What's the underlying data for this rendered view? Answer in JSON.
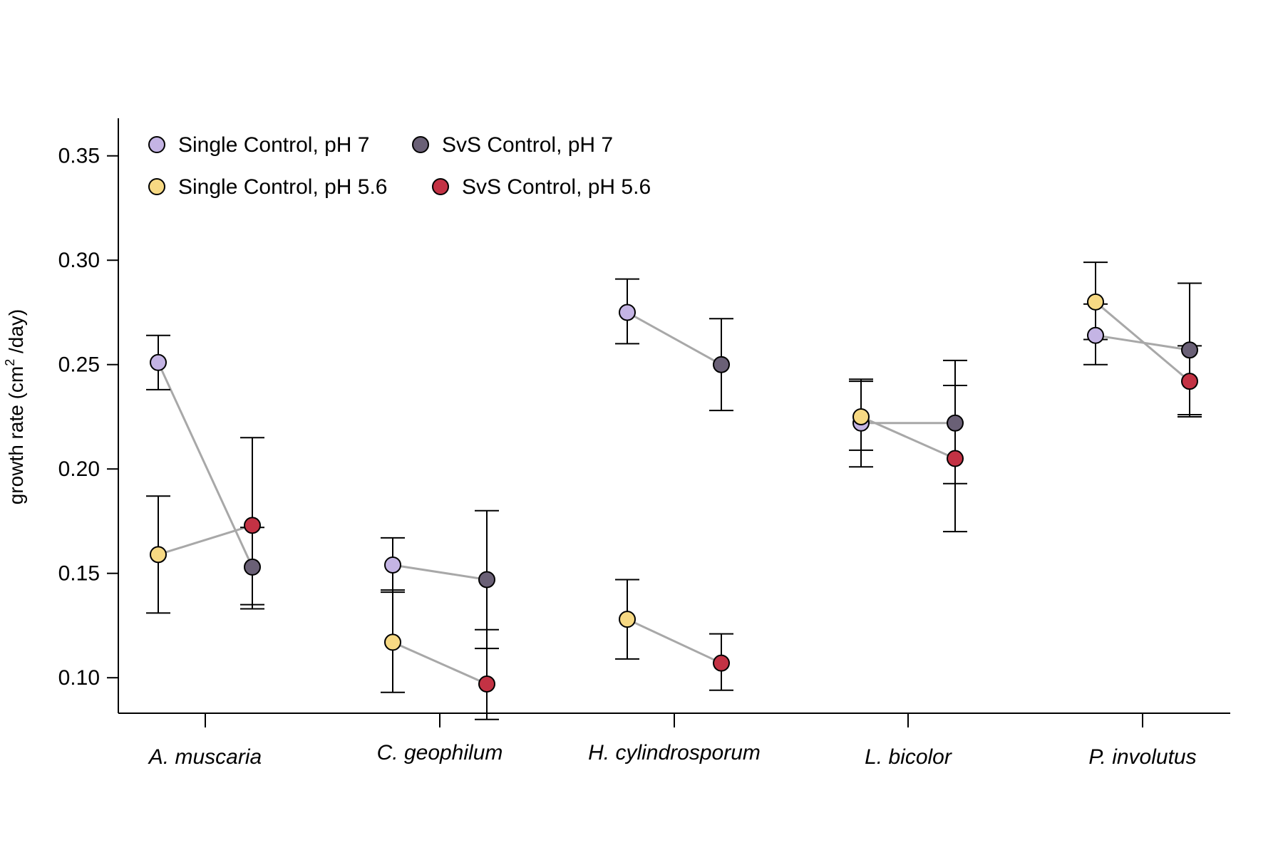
{
  "chart_data": {
    "type": "scatter",
    "title": "",
    "xlabel": "",
    "ylabel": "growth rate (cm² /day)",
    "ylabel_parts": {
      "pre": "growth rate (cm",
      "sup": "2",
      "post": " /day)"
    },
    "ylim": [
      0.083,
      0.368
    ],
    "yticks": [
      "0.10",
      "0.15",
      "0.20",
      "0.25",
      "0.30",
      "0.35"
    ],
    "categories": [
      "A. muscaria",
      "C. geophilum",
      "H. cylindrosporum",
      "L. bicolor",
      "P. involutus"
    ],
    "grid": false,
    "legend_position": "top-left",
    "series": [
      {
        "name": "Single Control, pH 7",
        "position": "single",
        "color": "#c4b4e4",
        "values": [
          0.251,
          0.154,
          0.275,
          0.222,
          0.264
        ],
        "err_low": [
          0.238,
          0.141,
          0.26,
          0.209,
          0.25
        ],
        "err_high": [
          0.264,
          0.167,
          0.291,
          0.242,
          0.279
        ]
      },
      {
        "name": "SvS Control, pH 7",
        "position": "svs",
        "color": "#6a6076",
        "values": [
          0.153,
          0.147,
          0.25,
          0.222,
          0.257
        ],
        "err_low": [
          0.135,
          0.114,
          0.228,
          0.193,
          0.226
        ],
        "err_high": [
          0.172,
          0.18,
          0.272,
          0.252,
          0.289
        ]
      },
      {
        "name": "Single Control, pH 5.6",
        "position": "single",
        "color": "#f7d983",
        "values": [
          0.159,
          0.117,
          0.128,
          0.225,
          0.28
        ],
        "err_low": [
          0.131,
          0.093,
          0.109,
          0.201,
          0.262
        ],
        "err_high": [
          0.187,
          0.142,
          0.147,
          0.243,
          0.299
        ]
      },
      {
        "name": "SvS Control, pH 5.6",
        "position": "svs",
        "color": "#c33244",
        "values": [
          0.173,
          0.097,
          0.107,
          0.205,
          0.242
        ],
        "err_low": [
          0.133,
          0.08,
          0.094,
          0.17,
          0.225
        ],
        "err_high": [
          0.215,
          0.123,
          0.121,
          0.24,
          0.259
        ]
      }
    ],
    "connectors": [
      {
        "from": 0,
        "to": 1,
        "color": "#a8a8a8"
      },
      {
        "from": 2,
        "to": 3,
        "color": "#a8a8a8"
      }
    ],
    "legend_layout": [
      {
        "series": 0,
        "row": 0,
        "col": 0
      },
      {
        "series": 1,
        "row": 0,
        "col": 1
      },
      {
        "series": 2,
        "row": 1,
        "col": 0
      },
      {
        "series": 3,
        "row": 1,
        "col": 1
      }
    ]
  }
}
